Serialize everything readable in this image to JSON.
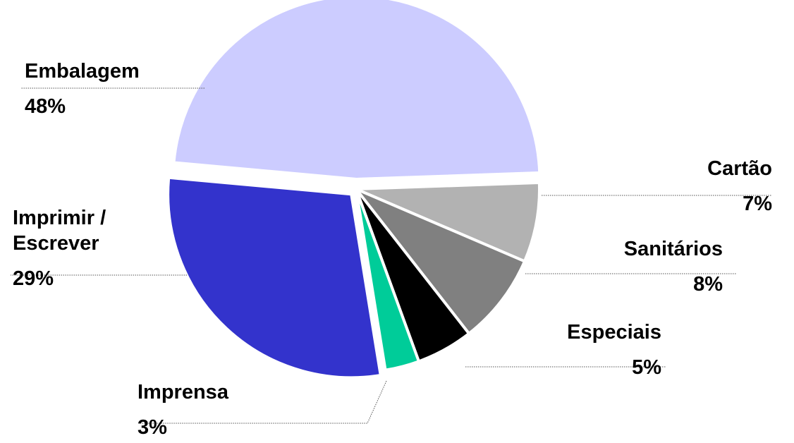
{
  "chart_data": {
    "type": "pie",
    "categories": [
      "Cartão",
      "Sanitários",
      "Especiais",
      "Imprensa",
      "Imprimir / Escrever",
      "Embalagem"
    ],
    "values": [
      7,
      8,
      5,
      3,
      29,
      48
    ],
    "value_labels": [
      "7%",
      "8%",
      "5%",
      "3%",
      "29%",
      "48%"
    ],
    "colors": [
      "#b2b2b2",
      "#808080",
      "#000000",
      "#00cc99",
      "#3333cc",
      "#ccccff"
    ]
  }
}
